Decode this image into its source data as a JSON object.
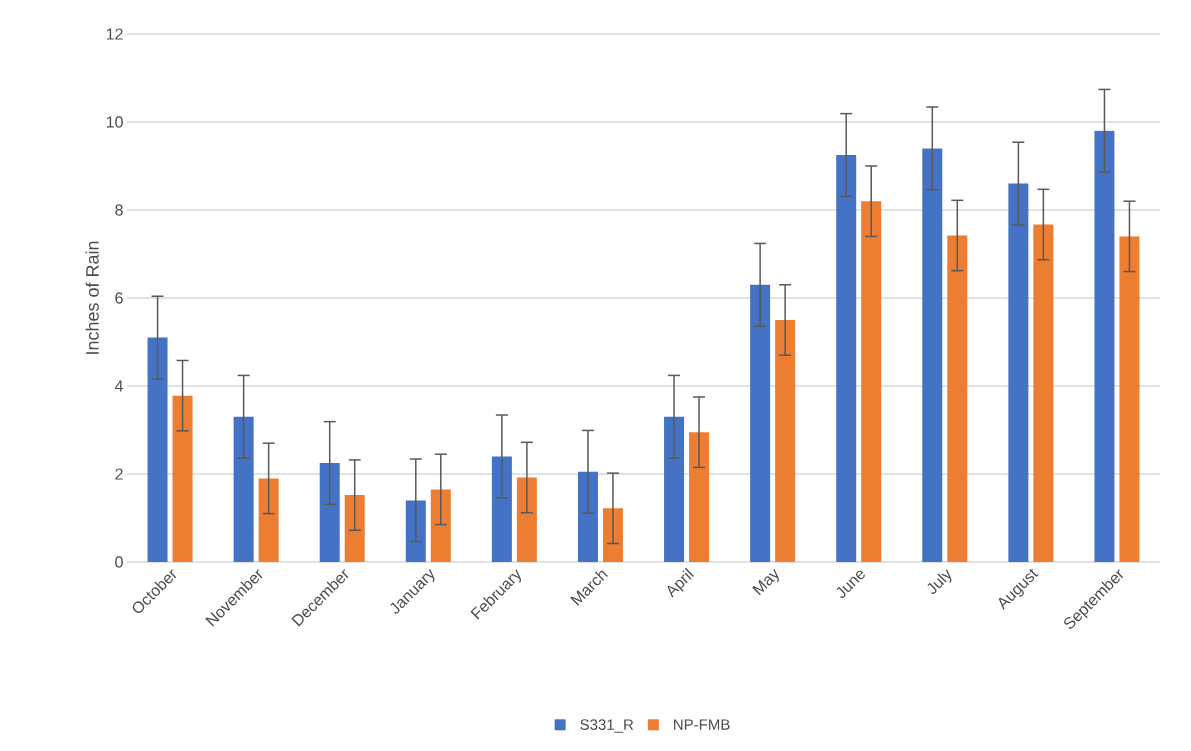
{
  "chart_data": {
    "type": "bar",
    "ylabel": "Inches of Rain",
    "categories": [
      "October",
      "November",
      "December",
      "January",
      "February",
      "March",
      "April",
      "May",
      "June",
      "July",
      "August",
      "September"
    ],
    "series": [
      {
        "name": "S331_R",
        "color": "#4472c4",
        "values": [
          5.1,
          3.3,
          2.25,
          1.4,
          2.4,
          2.05,
          3.3,
          6.3,
          9.25,
          9.4,
          8.6,
          9.8
        ],
        "errors": [
          0.94,
          0.94,
          0.94,
          0.94,
          0.94,
          0.94,
          0.94,
          0.94,
          0.94,
          0.94,
          0.94,
          0.94
        ]
      },
      {
        "name": "NP-FMB",
        "color": "#ed7d31",
        "values": [
          3.78,
          1.9,
          1.52,
          1.65,
          1.92,
          1.22,
          2.95,
          5.5,
          8.2,
          7.42,
          7.67,
          7.4
        ],
        "errors": [
          0.8,
          0.8,
          0.8,
          0.8,
          0.8,
          0.8,
          0.8,
          0.8,
          0.8,
          0.8,
          0.8,
          0.8
        ]
      }
    ],
    "ylim": [
      0,
      12
    ],
    "yticks": [
      0,
      2,
      4,
      6,
      8,
      10,
      12
    ],
    "grid": "y",
    "legend": "bottom"
  }
}
